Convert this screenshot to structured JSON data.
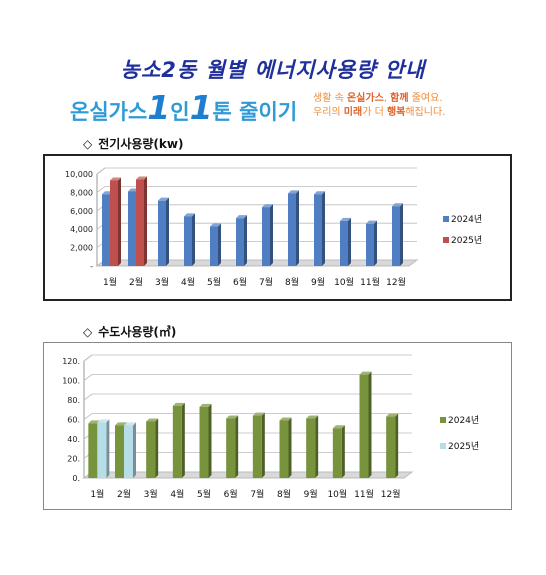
{
  "page": {
    "title": "농소2동 월별 에너지사용량 안내",
    "slogan": {
      "part1": "온실가스",
      "num1": "1",
      "part2": "인",
      "num2": "1",
      "part3": "톤 줄이기",
      "line1_pre": "생활 속 ",
      "line1_bold1": "온실가스",
      "line1_mid": ", ",
      "line1_bold2": "함께",
      "line1_post": " 줄여요.",
      "line2_pre": "우리의 ",
      "line2_bold1": "미래",
      "line2_mid": "가 더 ",
      "line2_bold2": "행복",
      "line2_post": "해집니다."
    }
  },
  "sections": {
    "electricity_title": "전기사용량(kw)",
    "water_title": "수도사용량(㎥)",
    "diamond": "◇"
  },
  "chart_data": [
    {
      "type": "bar",
      "title": "전기사용량(kw)",
      "categories": [
        "1월",
        "2월",
        "3월",
        "4월",
        "5월",
        "6월",
        "7월",
        "8월",
        "9월",
        "10월",
        "11월",
        "12월"
      ],
      "series": [
        {
          "name": "2024년",
          "color": "#4f7fc2",
          "values": [
            7800,
            8100,
            7100,
            5400,
            4300,
            5200,
            6400,
            7900,
            7800,
            4900,
            4600,
            6500
          ]
        },
        {
          "name": "2025년",
          "color": "#c0504d",
          "values": [
            9300,
            9400,
            null,
            null,
            null,
            null,
            null,
            null,
            null,
            null,
            null,
            null
          ]
        }
      ],
      "yticks": [
        "-",
        "2,000",
        "4,000",
        "6,000",
        "8,000",
        "10,000"
      ],
      "ylim": [
        0,
        10000
      ],
      "legend_position": "right",
      "grid": true
    },
    {
      "type": "bar",
      "title": "수도사용량(㎥)",
      "categories": [
        "1월",
        "2월",
        "3월",
        "4월",
        "5월",
        "6월",
        "7월",
        "8월",
        "9월",
        "10월",
        "11월",
        "12월"
      ],
      "series": [
        {
          "name": "2024년",
          "color": "#77933c",
          "values": [
            56,
            54,
            58,
            74,
            73,
            61,
            64,
            59,
            61,
            51,
            106,
            63
          ]
        },
        {
          "name": "2025년",
          "color": "#b7dde8",
          "values": [
            57,
            54,
            null,
            null,
            null,
            null,
            null,
            null,
            null,
            null,
            null,
            null
          ]
        }
      ],
      "yticks": [
        "0.",
        "20.",
        "40.",
        "60.",
        "80.",
        "100.",
        "120."
      ],
      "ylim": [
        0,
        120
      ],
      "legend_position": "right",
      "grid": true
    }
  ]
}
